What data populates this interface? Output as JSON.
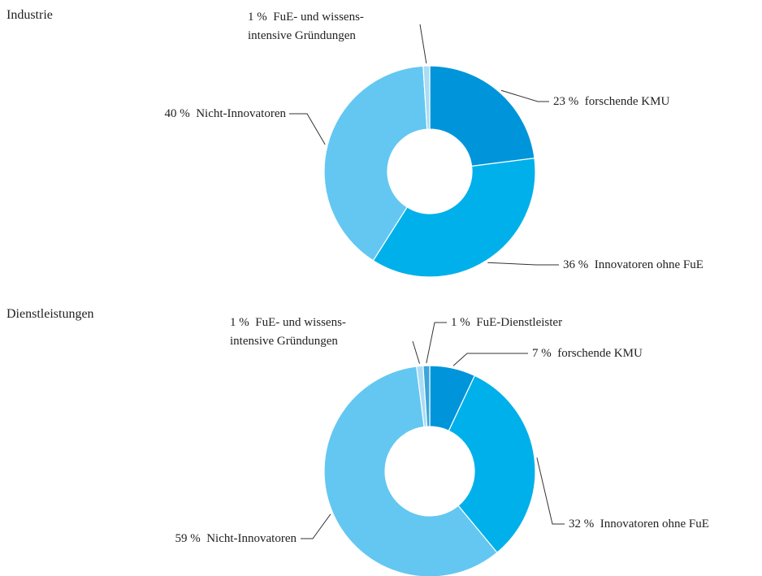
{
  "chart_data": [
    {
      "type": "donut",
      "title": "Industrie",
      "categories": [
        "forschende KMU",
        "Innovatoren ohne FuE",
        "Nicht-Innovatoren",
        "FuE- und wissens-\nintensive Gründungen"
      ],
      "values": [
        23,
        36,
        40,
        1
      ],
      "value_labels": [
        "23 %",
        "36 %",
        "40 %",
        "1 %"
      ],
      "colors": [
        "#0095da",
        "#00b0ea",
        "#63c7f1",
        "#a9dcf5"
      ]
    },
    {
      "type": "donut",
      "title": "Dienstleistungen",
      "categories": [
        "forschende KMU",
        "Innovatoren ohne FuE",
        "Nicht-Innovatoren",
        "FuE- und wissens-\nintensive Gründungen",
        "FuE-Dienstleister"
      ],
      "values": [
        7,
        32,
        59,
        1,
        1
      ],
      "value_labels": [
        "7 %",
        "32 %",
        "59 %",
        "1 %",
        "1 %"
      ],
      "colors": [
        "#0095da",
        "#00b0ea",
        "#63c7f1",
        "#a9dcf5",
        "#3aa6d9"
      ]
    }
  ]
}
